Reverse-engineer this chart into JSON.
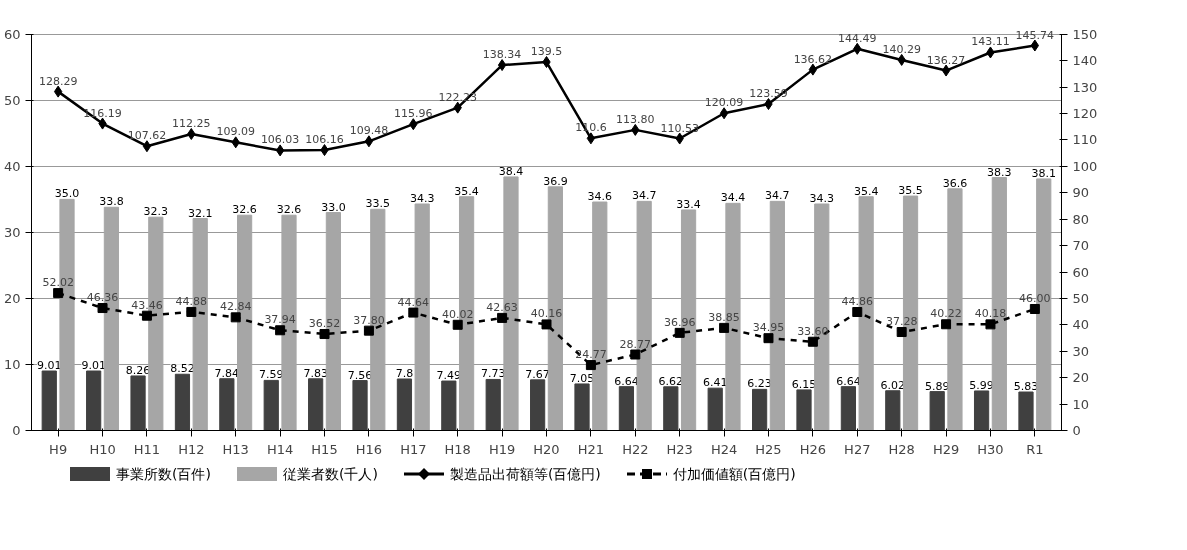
{
  "chart_data": {
    "type": "bar",
    "categories": [
      "H9",
      "H10",
      "H11",
      "H12",
      "H13",
      "H14",
      "H15",
      "H16",
      "H17",
      "H18",
      "H19",
      "H20",
      "H21",
      "H22",
      "H23",
      "H24",
      "H25",
      "H26",
      "H27",
      "H28",
      "H29",
      "H30",
      "R1"
    ],
    "ylim": [
      0,
      60
    ],
    "yticks": [
      0,
      10,
      20,
      30,
      40,
      50,
      60
    ],
    "y2lim": [
      0,
      150
    ],
    "y2ticks": [
      0,
      10,
      20,
      30,
      40,
      50,
      60,
      70,
      80,
      90,
      100,
      110,
      120,
      130,
      140,
      150
    ],
    "grid": "y",
    "legend": "bottom",
    "series": [
      {
        "name": "事業所数(百件)",
        "type": "bar",
        "color": "#404040",
        "values": [
          9.01,
          9.01,
          8.26,
          8.52,
          7.84,
          7.59,
          7.83,
          7.56,
          7.8,
          7.49,
          7.73,
          7.67,
          7.05,
          6.64,
          6.62,
          6.41,
          6.23,
          6.15,
          6.64,
          6.02,
          5.89,
          5.99,
          5.83
        ],
        "value_labels": [
          "9.01",
          "9.01",
          "8.26",
          "8.52",
          "7.84",
          "7.59",
          "7.83",
          "7.56",
          "7.8",
          "7.49",
          "7.73",
          "7.67",
          "7.05",
          "6.64",
          "6.62",
          "6.41",
          "6.23",
          "6.15",
          "6.64",
          "6.02",
          "5.89",
          "5.99",
          "5.83"
        ]
      },
      {
        "name": "従業者数(千人)",
        "type": "bar",
        "color": "#a6a6a6",
        "values": [
          35.0,
          33.8,
          32.3,
          32.1,
          32.6,
          32.6,
          33.0,
          33.5,
          34.3,
          35.4,
          38.4,
          36.9,
          34.6,
          34.7,
          33.4,
          34.4,
          34.7,
          34.3,
          35.4,
          35.5,
          36.6,
          38.3,
          38.1
        ],
        "value_labels": [
          "35.0",
          "33.8",
          "32.3",
          "32.1",
          "32.6",
          "32.6",
          "33.0",
          "33.5",
          "34.3",
          "35.4",
          "38.4",
          "36.9",
          "34.6",
          "34.7",
          "33.4",
          "34.4",
          "34.7",
          "34.3",
          "35.4",
          "35.5",
          "36.6",
          "38.3",
          "38.1"
        ]
      },
      {
        "name": "製造品出荷額等(百億円)",
        "type": "line",
        "axis": "y2",
        "color": "#000000",
        "marker": "diamond",
        "line_style": "solid",
        "values": [
          128.29,
          116.19,
          107.62,
          112.25,
          109.09,
          106.03,
          106.16,
          109.48,
          115.96,
          122.23,
          138.34,
          139.5,
          110.6,
          113.8,
          110.53,
          120.09,
          123.59,
          136.62,
          144.49,
          140.29,
          136.27,
          143.11,
          145.74
        ],
        "value_labels": [
          "128.29",
          "116.19",
          "107.62",
          "112.25",
          "109.09",
          "106.03",
          "106.16",
          "109.48",
          "115.96",
          "122.23",
          "138.34",
          "139.5",
          "110.6",
          "113.80",
          "110.53",
          "120.09",
          "123.59",
          "136.62",
          "144.49",
          "140.29",
          "136.27",
          "143.11",
          "145.74"
        ]
      },
      {
        "name": "付加価値額(百億円)",
        "type": "line",
        "axis": "y2",
        "color": "#000000",
        "marker": "square",
        "line_style": "dashed",
        "values": [
          52.02,
          46.36,
          43.46,
          44.88,
          42.84,
          37.94,
          36.52,
          37.8,
          44.64,
          40.02,
          42.63,
          40.16,
          24.77,
          28.77,
          36.96,
          38.85,
          34.95,
          33.6,
          44.86,
          37.28,
          40.22,
          40.18,
          46.0
        ],
        "value_labels": [
          "52.02",
          "46.36",
          "43.46",
          "44.88",
          "42.84",
          "37.94",
          "36.52",
          "37.80",
          "44.64",
          "40.02",
          "42.63",
          "40.16",
          "24.77",
          "28.77",
          "36.96",
          "38.85",
          "34.95",
          "33.60",
          "44.86",
          "37.28",
          "40.22",
          "40.18",
          "46.00"
        ]
      }
    ]
  }
}
